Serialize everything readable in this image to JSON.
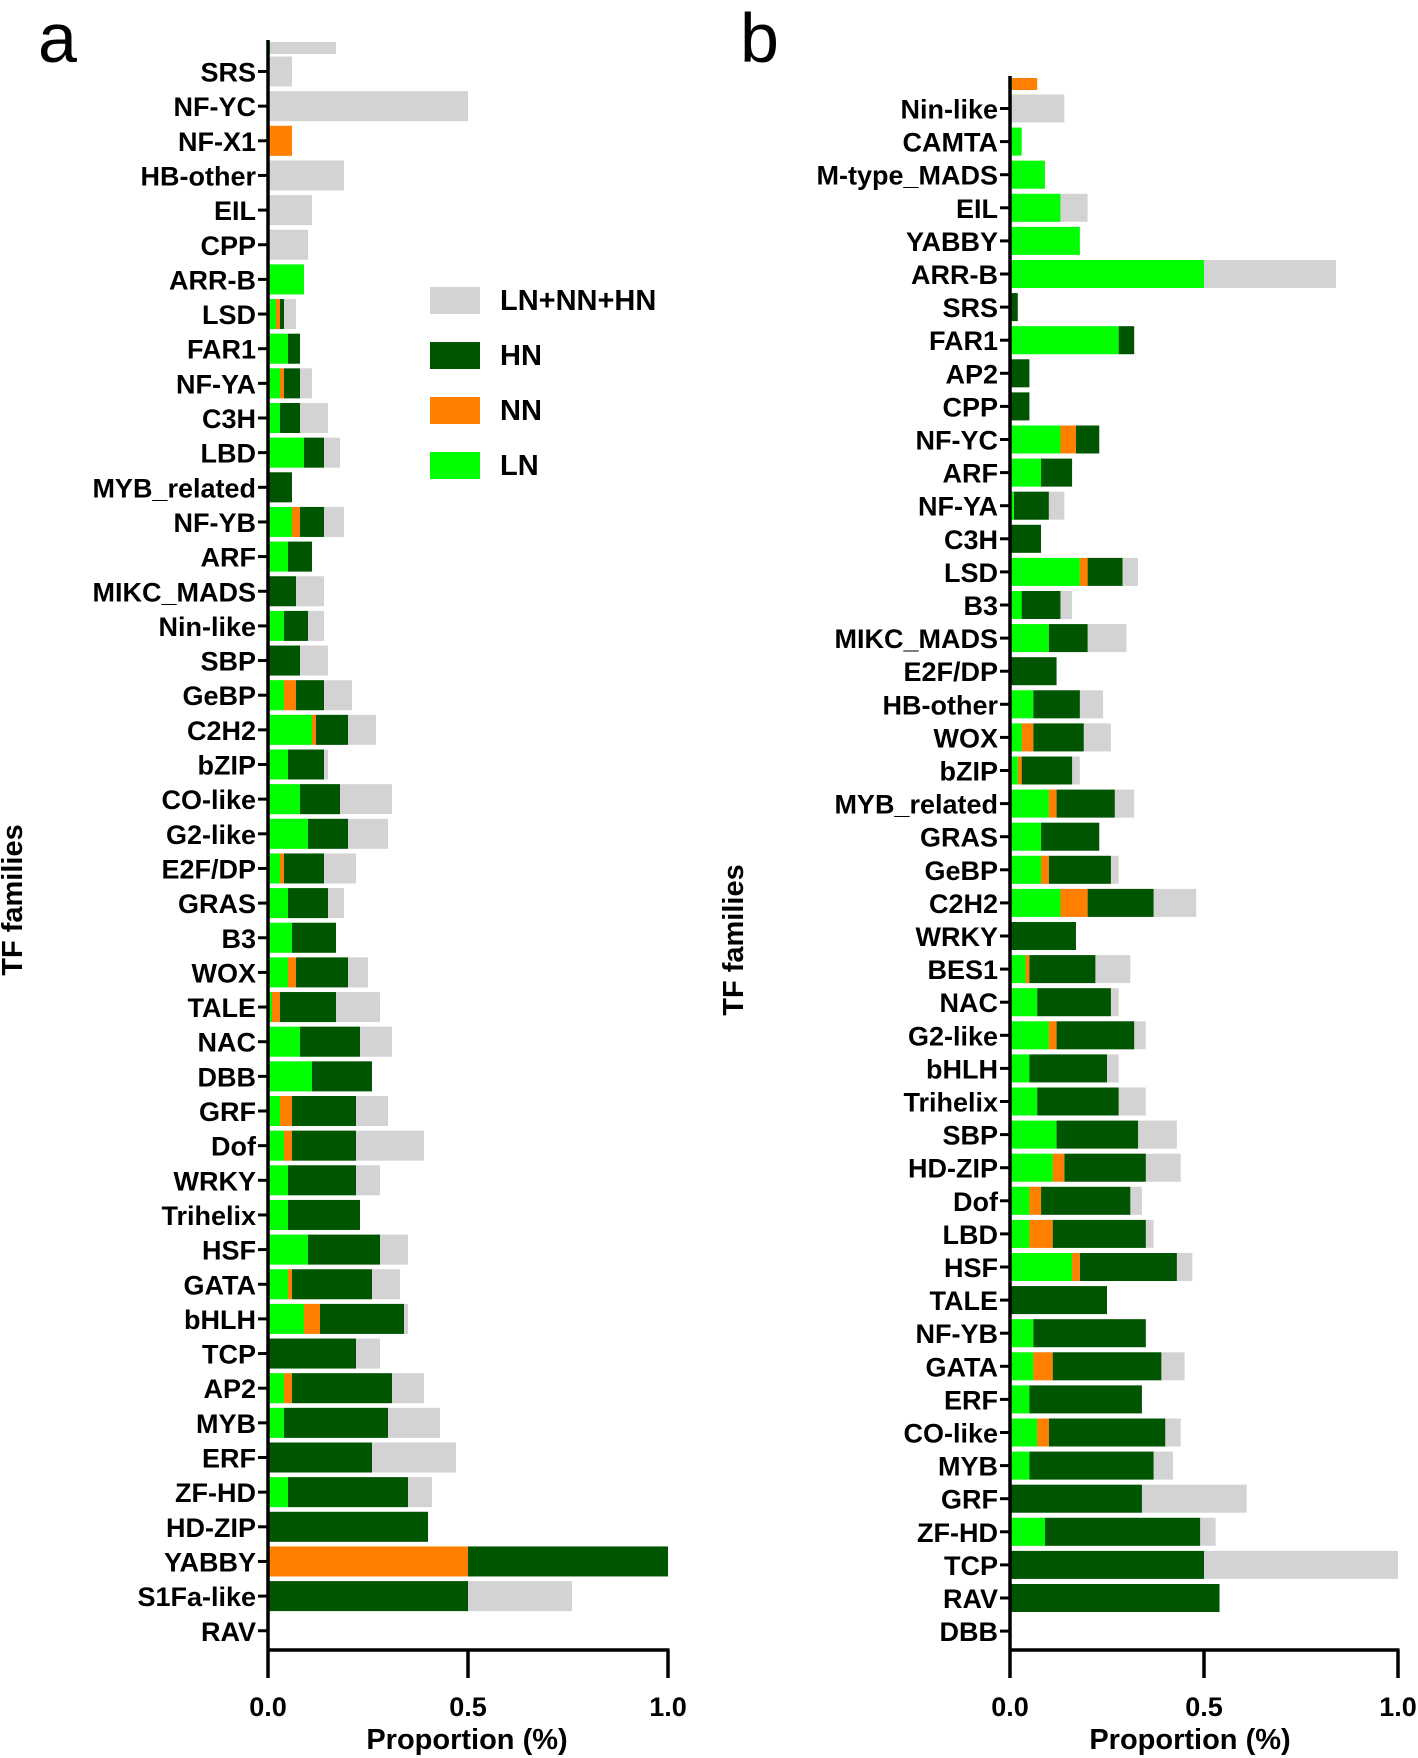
{
  "figure": {
    "colors": {
      "total": "#d3d3d3",
      "HN": "#005500",
      "NN": "#ff8000",
      "LN": "#00ff00",
      "axis": "#000000"
    },
    "legend": {
      "labels": [
        "LN+NN+HN",
        "HN",
        "NN",
        "LN"
      ],
      "keys": [
        "total",
        "HN",
        "NN",
        "LN"
      ]
    }
  },
  "chart_data": [
    {
      "type": "bar",
      "orientation": "horizontal",
      "stacked": true,
      "panel_label": "a",
      "xlabel": "Proportion (%)",
      "ylabel": "TF families",
      "xlim": [
        0,
        1.0
      ],
      "xticks": [
        "0.0",
        "0.5",
        "1.0"
      ],
      "legend_position": "top-right",
      "series_names": [
        "LN",
        "NN",
        "HN",
        "LN+NN+HN"
      ],
      "top_stub": {
        "LN": 0.005,
        "NN": 0.0,
        "HN": 0.0,
        "total": 0.17
      },
      "categories": [
        "SRS",
        "NF-YC",
        "NF-X1",
        "HB-other",
        "EIL",
        "CPP",
        "ARR-B",
        "LSD",
        "FAR1",
        "NF-YA",
        "C3H",
        "LBD",
        "MYB_related",
        "NF-YB",
        "ARF",
        "MIKC_MADS",
        "Nin-like",
        "SBP",
        "GeBP",
        "C2H2",
        "bZIP",
        "CO-like",
        "G2-like",
        "E2F/DP",
        "GRAS",
        "B3",
        "WOX",
        "TALE",
        "NAC",
        "DBB",
        "GRF",
        "Dof",
        "WRKY",
        "Trihelix",
        "HSF",
        "GATA",
        "bHLH",
        "TCP",
        "AP2",
        "MYB",
        "ERF",
        "ZF-HD",
        "HD-ZIP",
        "YABBY",
        "S1Fa-like",
        "RAV"
      ],
      "LN": [
        0,
        0,
        0,
        0,
        0,
        0,
        0.09,
        0.02,
        0.05,
        0.03,
        0.03,
        0.09,
        0,
        0.06,
        0.05,
        0,
        0.04,
        0,
        0.04,
        0.11,
        0.05,
        0.08,
        0.1,
        0.03,
        0.05,
        0.06,
        0.05,
        0.01,
        0.08,
        0.11,
        0.03,
        0.04,
        0.05,
        0.05,
        0.1,
        0.05,
        0.09,
        0,
        0.04,
        0.04,
        0,
        0.05,
        0,
        0,
        0,
        0
      ],
      "NN": [
        0,
        0,
        0.06,
        0,
        0,
        0,
        0,
        0.01,
        0,
        0.01,
        0,
        0,
        0,
        0.02,
        0,
        0,
        0,
        0,
        0.03,
        0.01,
        0,
        0,
        0,
        0.01,
        0,
        0,
        0.02,
        0.02,
        0,
        0,
        0.03,
        0.02,
        0,
        0,
        0,
        0.01,
        0.04,
        0,
        0.02,
        0,
        0,
        0,
        0,
        0.5,
        0,
        0
      ],
      "HN": [
        0,
        0,
        0,
        0,
        0,
        0,
        0,
        0.01,
        0.03,
        0.04,
        0.05,
        0.05,
        0.06,
        0.06,
        0.06,
        0.07,
        0.06,
        0.08,
        0.07,
        0.08,
        0.09,
        0.1,
        0.1,
        0.1,
        0.1,
        0.11,
        0.13,
        0.14,
        0.15,
        0.15,
        0.16,
        0.16,
        0.17,
        0.18,
        0.18,
        0.2,
        0.21,
        0.22,
        0.25,
        0.26,
        0.26,
        0.3,
        0.4,
        0.5,
        0.5,
        0
      ],
      "total": [
        0.06,
        0.5,
        0.06,
        0.19,
        0.11,
        0.1,
        0.09,
        0.07,
        0.08,
        0.11,
        0.15,
        0.18,
        0.06,
        0.19,
        0.11,
        0.14,
        0.14,
        0.15,
        0.21,
        0.27,
        0.15,
        0.31,
        0.3,
        0.22,
        0.19,
        0.17,
        0.25,
        0.28,
        0.31,
        0.26,
        0.3,
        0.39,
        0.28,
        0.23,
        0.35,
        0.33,
        0.35,
        0.28,
        0.39,
        0.43,
        0.47,
        0.41,
        0.4,
        1.0,
        0.76,
        0
      ]
    },
    {
      "type": "bar",
      "orientation": "horizontal",
      "stacked": true,
      "panel_label": "b",
      "xlabel": "Proportion (%)",
      "ylabel": "TF families",
      "xlim": [
        0,
        1.0
      ],
      "xticks": [
        "0.0",
        "0.5",
        "1.0"
      ],
      "series_names": [
        "LN",
        "NN",
        "HN",
        "LN+NN+HN"
      ],
      "top_stub": {
        "LN": 0.005,
        "NN": 0.065,
        "HN": 0.0,
        "total": 0.07
      },
      "categories": [
        "Nin-like",
        "CAMTA",
        "M-type_MADS",
        "EIL",
        "YABBY",
        "ARR-B",
        "SRS",
        "FAR1",
        "AP2",
        "CPP",
        "NF-YC",
        "ARF",
        "NF-YA",
        "C3H",
        "LSD",
        "B3",
        "MIKC_MADS",
        "E2F/DP",
        "HB-other",
        "WOX",
        "bZIP",
        "MYB_related",
        "GRAS",
        "GeBP",
        "C2H2",
        "WRKY",
        "BES1",
        "NAC",
        "G2-like",
        "bHLH",
        "Trihelix",
        "SBP",
        "HD-ZIP",
        "Dof",
        "LBD",
        "HSF",
        "TALE",
        "NF-YB",
        "GATA",
        "ERF",
        "CO-like",
        "MYB",
        "GRF",
        "ZF-HD",
        "TCP",
        "RAV",
        "DBB"
      ],
      "LN": [
        0,
        0.03,
        0.09,
        0.13,
        0.18,
        0.5,
        0,
        0.28,
        0,
        0,
        0.13,
        0.08,
        0.01,
        0,
        0.18,
        0.03,
        0.1,
        0,
        0.06,
        0.03,
        0.02,
        0.1,
        0.08,
        0.08,
        0.13,
        0,
        0.04,
        0.07,
        0.1,
        0.05,
        0.07,
        0.12,
        0.11,
        0.05,
        0.05,
        0.16,
        0,
        0.06,
        0.06,
        0.05,
        0.07,
        0.05,
        0,
        0.09,
        0,
        0,
        0
      ],
      "NN": [
        0,
        0,
        0,
        0,
        0,
        0,
        0,
        0,
        0,
        0,
        0.04,
        0,
        0,
        0,
        0.02,
        0,
        0,
        0,
        0,
        0.03,
        0.01,
        0.02,
        0,
        0.02,
        0.07,
        0,
        0.01,
        0,
        0.02,
        0,
        0,
        0,
        0.03,
        0.03,
        0.06,
        0.02,
        0,
        0,
        0.05,
        0,
        0.03,
        0,
        0,
        0,
        0,
        0,
        0
      ],
      "HN": [
        0,
        0,
        0,
        0,
        0,
        0,
        0.02,
        0.04,
        0.05,
        0.05,
        0.06,
        0.08,
        0.09,
        0.08,
        0.09,
        0.1,
        0.1,
        0.12,
        0.12,
        0.13,
        0.13,
        0.15,
        0.15,
        0.16,
        0.17,
        0.17,
        0.17,
        0.19,
        0.2,
        0.2,
        0.21,
        0.21,
        0.21,
        0.23,
        0.24,
        0.25,
        0.25,
        0.29,
        0.28,
        0.29,
        0.3,
        0.32,
        0.34,
        0.4,
        0.5,
        0.54,
        0
      ],
      "total": [
        0.14,
        0.03,
        0.09,
        0.2,
        0.18,
        0.84,
        0.02,
        0.32,
        0.05,
        0.05,
        0.23,
        0.16,
        0.14,
        0.08,
        0.33,
        0.16,
        0.3,
        0.12,
        0.24,
        0.26,
        0.18,
        0.32,
        0.23,
        0.28,
        0.48,
        0.17,
        0.31,
        0.28,
        0.35,
        0.28,
        0.35,
        0.43,
        0.44,
        0.34,
        0.37,
        0.47,
        0.25,
        0.35,
        0.45,
        0.34,
        0.44,
        0.42,
        0.61,
        0.53,
        1.0,
        0.54,
        0
      ]
    }
  ]
}
